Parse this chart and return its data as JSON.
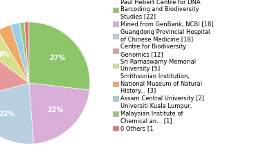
{
  "labels": [
    "Paul Hebert Centre for DNA\nBarcoding and Biodiversity\nStudies [22]",
    "Mined from GenBank, NCBI [18]",
    "Guangdong Provincial Hospital\nof Chinese Medicine [18]",
    "Centre for Biodiversity\nGenomics [12]",
    "Sri Ramaswamy Memorial\nUniversity [5]",
    "Smithsonian Institution,\nNational Museum of Natural\nHistory... [3]",
    "Assam Central University [2]",
    "Universiti Kuala Lumpur,\nMalaysian Institute of\nChemical an... [1]",
    "0 Others [1"
  ],
  "values": [
    22,
    18,
    18,
    12,
    5,
    3,
    2,
    1,
    1
  ],
  "colors": [
    "#8dc56b",
    "#d9aed9",
    "#b8cfe0",
    "#e89898",
    "#d4e08a",
    "#f0a868",
    "#9bcde8",
    "#90c878",
    "#e07870"
  ],
  "legend_fontsize": 6.0,
  "pct_fontsize": 7.0,
  "pct_color": "white",
  "pct_threshold": 5.0
}
